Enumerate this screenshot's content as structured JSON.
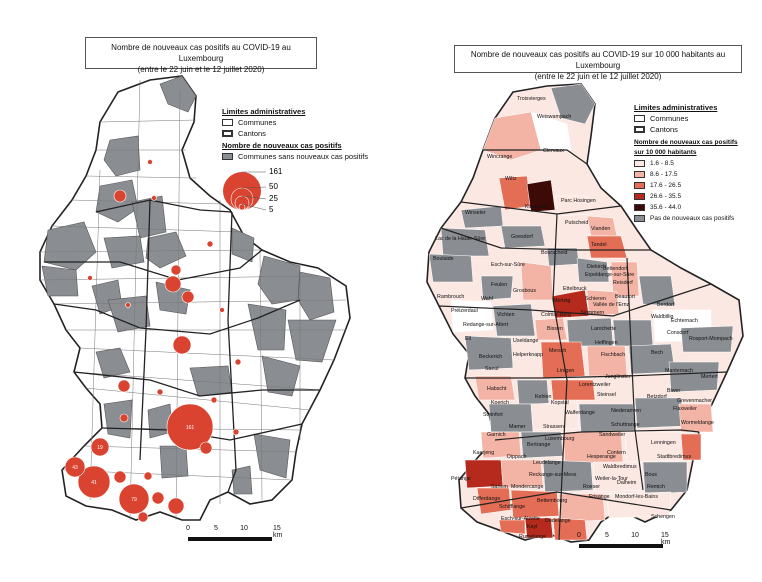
{
  "left_map": {
    "title": "Nombre de nouveaux cas positifs au COVID-19 au Luxembourg",
    "subtitle": "(entre le 22 juin et le 12 juillet 2020)",
    "legend": {
      "admin_heading": "Limites administratives",
      "communes": "Communes",
      "cantons": "Cantons",
      "cases_heading": "Nombre de nouveaux cas positifs",
      "no_cases": "Communes sans nouveaux cas positifs",
      "bubble_sizes": [
        "161",
        "50",
        "25",
        "5"
      ]
    },
    "scale": {
      "ticks": [
        "0",
        "5",
        "10",
        "15 km"
      ]
    },
    "colors": {
      "bubble": "#d9432f",
      "no_cases_fill": "#8a8d92",
      "commune_fill": "#ffffff"
    },
    "bubble_labels": [
      "161",
      "41",
      "79",
      "43",
      "19"
    ]
  },
  "right_map": {
    "title": "Nombre de nouveaux cas positifs au COVID-19 sur 10 000 habitants au Luxembourg",
    "subtitle": "(entre le 22 juin et le 12 juillet 2020)",
    "legend": {
      "admin_heading": "Limites administratives",
      "communes": "Communes",
      "cantons": "Cantons",
      "rate_heading": "Nombre de nouveaux cas positifs",
      "rate_subheading": "sur 10 000 habitants",
      "classes": [
        {
          "label": "1.6 - 8.5",
          "color": "#fce8e2"
        },
        {
          "label": "8.6 - 17.5",
          "color": "#f3b3a5"
        },
        {
          "label": "17.6 - 26.5",
          "color": "#e46d55"
        },
        {
          "label": "26.6 - 35.5",
          "color": "#b52a1d"
        },
        {
          "label": "35.6 - 44.0",
          "color": "#3d0a08"
        }
      ],
      "no_cases": "Pas de nouveaux cas positifs",
      "no_cases_color": "#8a8d92"
    },
    "scale": {
      "ticks": [
        "0",
        "5",
        "10",
        "15 km"
      ]
    },
    "commune_labels": [
      "Troisvierges",
      "Weiswampach",
      "Clervaux",
      "Wincrange",
      "Wiltz",
      "Kiischpelt",
      "Parc Hosingen",
      "Winseler",
      "Putscheid",
      "Vianden",
      "Lac de la Haute-Sûre",
      "Goesdorf",
      "Tandel",
      "Boulaide",
      "Esch-sur-Sûre",
      "Bourscheid",
      "Diekirch",
      "Bettendorf",
      "Feulen",
      "Erpeldange-sur-Sûre",
      "Ettelbruck",
      "Reisdorf",
      "Wahl",
      "Grosbous",
      "Beaufort",
      "Rambrouch",
      "Mertzig",
      "Schieren",
      "Vallée de l'Ernz",
      "Berdorf",
      "Préizerdaul",
      "Vichten",
      "Colmar-Berg",
      "Nommern",
      "Waldbillig",
      "Echternach",
      "Redange-sur-Attert",
      "Bissen",
      "Larochette",
      "Consdorf",
      "Ell",
      "Useldange",
      "Heffingen",
      "Rosport-Mompach",
      "Beckerich",
      "Helperknapp",
      "Mersch",
      "Fischbach",
      "Bech",
      "Saeul",
      "Lintgen",
      "Junglinster",
      "Manternach",
      "Mertert",
      "Habscht",
      "Lorentzweiler",
      "Biwer",
      "Grevenmacher",
      "Kehlen",
      "Steinsel",
      "Betzdorf",
      "Koerich",
      "Kopstal",
      "Flaxweiler",
      "Walferdange",
      "Steinfort",
      "Niederanven",
      "Wormeldange",
      "Mamer",
      "Strassen",
      "Schuttrange",
      "Garnich",
      "Luxembourg",
      "Sandweiler",
      "Lenningen",
      "Bertrange",
      "Contern",
      "Kaerjeng",
      "Dippach",
      "Stadtbredimus",
      "Hesperange",
      "Leudelange",
      "Waldbredimus",
      "Reckange-sur-Mess",
      "Weiler-la-Tour",
      "Bous",
      "Pétange",
      "Sanem",
      "Roeser",
      "Dalheim",
      "Remich",
      "Mondercange",
      "Differdange",
      "Bettembourg",
      "Frisange",
      "Mondorf-les-Bains",
      "Schifflange",
      "Schengen",
      "Esch-sur-Alzette",
      "Kayl",
      "Dudelange",
      "Rumelange"
    ]
  }
}
